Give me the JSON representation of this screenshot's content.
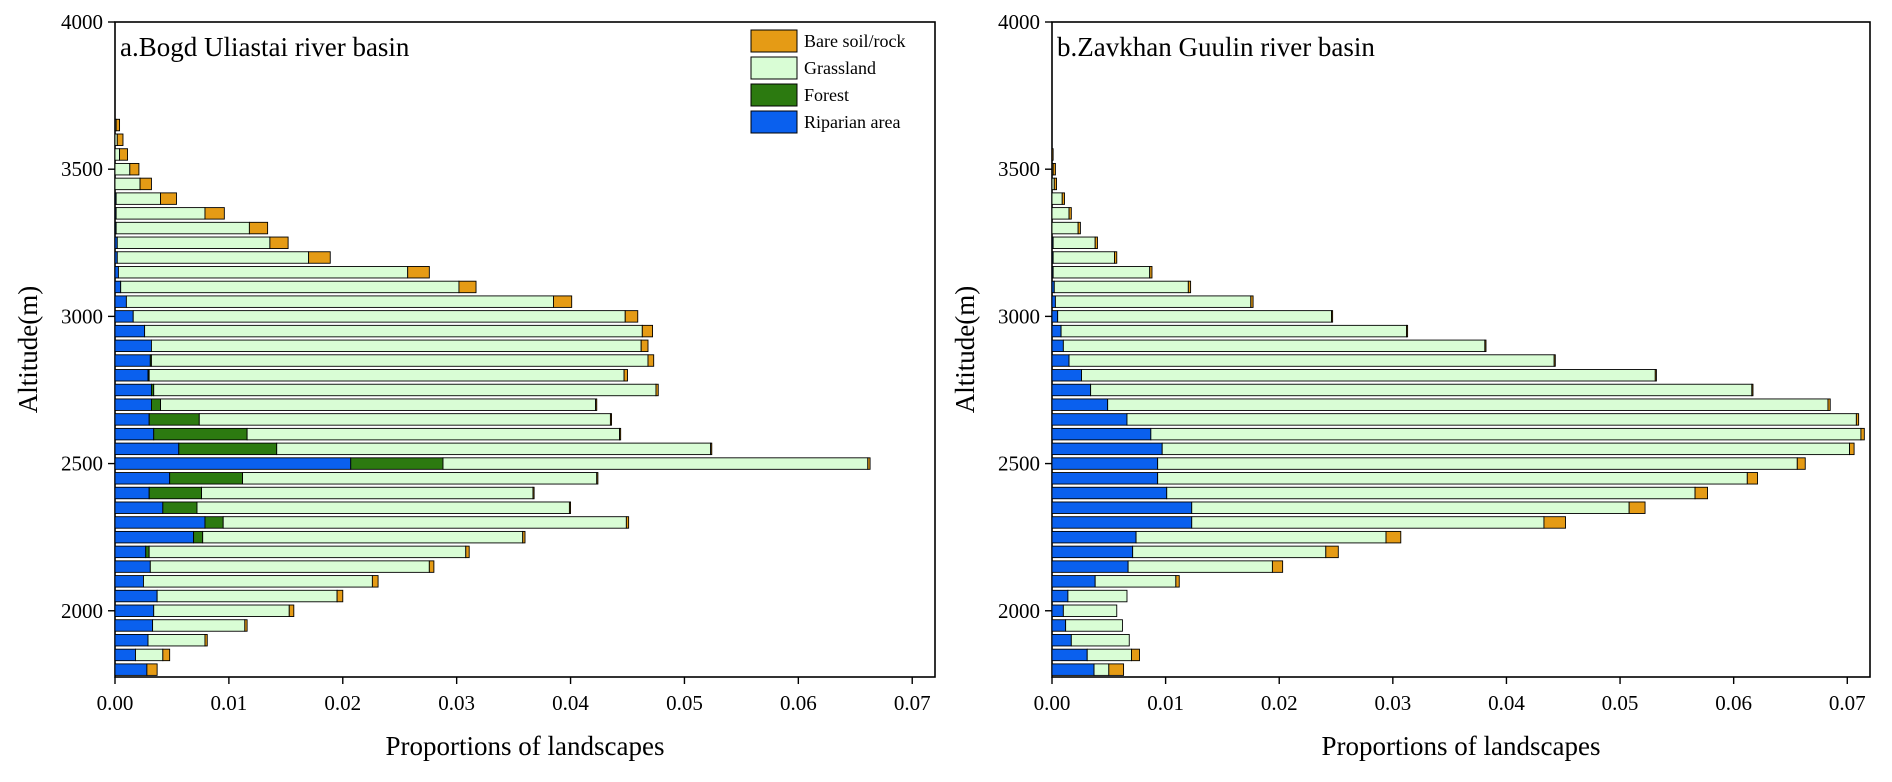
{
  "colors": {
    "bare": "#E59B15",
    "grass": "#D9FDD5",
    "forest": "#2C7A10",
    "riparian": "#0A60EE"
  },
  "legend": [
    {
      "key": "bare",
      "label": "Bare soil/rock"
    },
    {
      "key": "grass",
      "label": "Grassland"
    },
    {
      "key": "forest",
      "label": "Forest"
    },
    {
      "key": "riparian",
      "label": "Riparian area"
    }
  ],
  "chart_data": [
    {
      "type": "bar",
      "orientation": "horizontal",
      "stacked": true,
      "title": "a.Bogd Uliastai river basin",
      "xlabel": "Proportions of landscapes",
      "ylabel": "Altitude(m)",
      "xlim": [
        0,
        0.072
      ],
      "ylim": [
        1775,
        4000
      ],
      "xticks": [
        "0.00",
        "0.01",
        "0.02",
        "0.03",
        "0.04",
        "0.05",
        "0.06",
        "0.07"
      ],
      "yticks": [
        "2000",
        "2500",
        "3000",
        "3500",
        "4000"
      ],
      "grid": false,
      "legend_position": "top-right",
      "altitudes": [
        1800,
        1850,
        1900,
        1950,
        2000,
        2050,
        2100,
        2150,
        2200,
        2250,
        2300,
        2350,
        2400,
        2450,
        2500,
        2550,
        2600,
        2650,
        2700,
        2750,
        2800,
        2850,
        2900,
        2950,
        3000,
        3050,
        3100,
        3150,
        3200,
        3250,
        3300,
        3350,
        3400,
        3450,
        3500,
        3550,
        3600,
        3650
      ],
      "series": [
        {
          "name": "Riparian area",
          "key": "riparian",
          "values": [
            0.0028,
            0.0018,
            0.0029,
            0.0033,
            0.0034,
            0.0037,
            0.0025,
            0.0031,
            0.0027,
            0.0069,
            0.0079,
            0.0042,
            0.003,
            0.0048,
            0.0207,
            0.0056,
            0.0034,
            0.003,
            0.0032,
            0.0032,
            0.0029,
            0.0031,
            0.0032,
            0.0026,
            0.0016,
            0.001,
            0.0005,
            0.0003,
            0.0002,
            0.0002,
            0.0001,
            0.0001,
            0.0001,
            0,
            0,
            0,
            0,
            0
          ]
        },
        {
          "name": "Forest",
          "key": "forest",
          "values": [
            0,
            0,
            0,
            0,
            0,
            0,
            0,
            0,
            0.0003,
            0.0008,
            0.0016,
            0.003,
            0.0046,
            0.0064,
            0.0081,
            0.0086,
            0.0082,
            0.0044,
            0.0008,
            0.0002,
            0.0001,
            0.0001,
            0,
            0,
            0,
            0,
            0,
            0,
            0,
            0,
            0,
            0,
            0,
            0,
            0,
            0,
            0,
            0
          ]
        },
        {
          "name": "Grassland",
          "key": "grass",
          "values": [
            0,
            0.0024,
            0.005,
            0.0081,
            0.0119,
            0.0158,
            0.0201,
            0.0245,
            0.0278,
            0.0281,
            0.0354,
            0.0327,
            0.0291,
            0.0311,
            0.0373,
            0.0381,
            0.0327,
            0.0361,
            0.0382,
            0.0441,
            0.0417,
            0.0436,
            0.043,
            0.0437,
            0.0432,
            0.0375,
            0.0297,
            0.0254,
            0.0168,
            0.0134,
            0.0117,
            0.0078,
            0.0039,
            0.0022,
            0.0013,
            0.0004,
            0.0002,
            0.0001
          ]
        },
        {
          "name": "Bare soil/rock",
          "key": "bare",
          "values": [
            0.0009,
            0.0006,
            0.0002,
            0.0002,
            0.0004,
            0.0005,
            0.0005,
            0.0004,
            0.0003,
            0.0002,
            0.0002,
            0.0001,
            0.0001,
            0.0001,
            0.0002,
            0.0001,
            0.0001,
            0.0001,
            0.0001,
            0.0002,
            0.0003,
            0.0005,
            0.0006,
            0.0009,
            0.0011,
            0.0016,
            0.0015,
            0.0019,
            0.0019,
            0.0016,
            0.0016,
            0.0017,
            0.0014,
            0.001,
            0.0008,
            0.0007,
            0.0005,
            0.0003
          ]
        }
      ]
    },
    {
      "type": "bar",
      "orientation": "horizontal",
      "stacked": true,
      "title": "b.Zavkhan Guulin river basin",
      "xlabel": "Proportions of landscapes",
      "ylabel": "Altitude(m)",
      "xlim": [
        0,
        0.072
      ],
      "ylim": [
        1775,
        4000
      ],
      "xticks": [
        "0.00",
        "0.01",
        "0.02",
        "0.03",
        "0.04",
        "0.05",
        "0.06",
        "0.07"
      ],
      "yticks": [
        "2000",
        "2500",
        "3000",
        "3500",
        "4000"
      ],
      "grid": false,
      "altitudes": [
        1800,
        1850,
        1900,
        1950,
        2000,
        2050,
        2100,
        2150,
        2200,
        2250,
        2300,
        2350,
        2400,
        2450,
        2500,
        2550,
        2600,
        2650,
        2700,
        2750,
        2800,
        2850,
        2900,
        2950,
        3000,
        3050,
        3100,
        3150,
        3200,
        3250,
        3300,
        3350,
        3400,
        3450,
        3500,
        3550
      ],
      "series": [
        {
          "name": "Riparian area",
          "key": "riparian",
          "values": [
            0.0037,
            0.0031,
            0.0017,
            0.0012,
            0.001,
            0.0014,
            0.0038,
            0.0067,
            0.0071,
            0.0074,
            0.0123,
            0.0123,
            0.0101,
            0.0093,
            0.0093,
            0.0097,
            0.0087,
            0.0066,
            0.0049,
            0.0034,
            0.0026,
            0.0015,
            0.001,
            0.0008,
            0.0005,
            0.0003,
            0.0002,
            0.0001,
            0.0001,
            0.0001,
            0,
            0,
            0,
            0,
            0,
            0
          ]
        },
        {
          "name": "Grassland",
          "key": "grass",
          "values": [
            0.0013,
            0.0039,
            0.0051,
            0.005,
            0.0047,
            0.0052,
            0.0071,
            0.0127,
            0.017,
            0.022,
            0.031,
            0.0385,
            0.0465,
            0.0519,
            0.0563,
            0.0605,
            0.0625,
            0.0642,
            0.0634,
            0.0582,
            0.0505,
            0.0427,
            0.0371,
            0.0304,
            0.0241,
            0.0172,
            0.0118,
            0.0085,
            0.0054,
            0.0037,
            0.0023,
            0.0015,
            0.0009,
            0.0002,
            0.0001,
            0
          ]
        },
        {
          "name": "Bare soil/rock",
          "key": "bare",
          "values": [
            0.0013,
            0.0007,
            0,
            0,
            0,
            0,
            0.0003,
            0.0009,
            0.0011,
            0.0013,
            0.0019,
            0.0014,
            0.0011,
            0.0009,
            0.0007,
            0.0004,
            0.0003,
            0.0002,
            0.0002,
            0.0001,
            0.0001,
            0.0001,
            0.0001,
            0.0001,
            0.0001,
            0.0002,
            0.0002,
            0.0002,
            0.0002,
            0.0002,
            0.0002,
            0.0002,
            0.0002,
            0.0002,
            0.0002,
            0.0001
          ]
        }
      ]
    }
  ]
}
